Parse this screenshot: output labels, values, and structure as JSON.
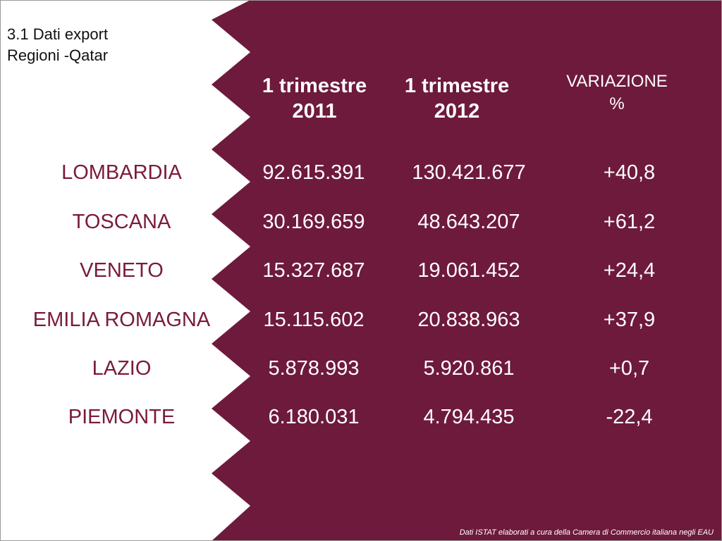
{
  "title": {
    "line1": "3.1 Dati export",
    "line2": "Regioni -Qatar"
  },
  "colors": {
    "maroon": "#6e1a3c",
    "region_text": "#7a1a3e",
    "white": "#ffffff"
  },
  "table": {
    "headers": {
      "col_2011": {
        "line1": "1 trimestre",
        "line2": "2011"
      },
      "col_2012": {
        "line1": "1 trimestre",
        "line2": "2012"
      },
      "col_var": {
        "line1": "VARIAZIONE",
        "line2": "%"
      }
    },
    "rows": [
      {
        "region": "LOMBARDIA",
        "v2011": "92.615.391",
        "v2012": "130.421.677",
        "var": "+40,8"
      },
      {
        "region": "TOSCANA",
        "v2011": "30.169.659",
        "v2012": "48.643.207",
        "var": "+61,2"
      },
      {
        "region": "VENETO",
        "v2011": "15.327.687",
        "v2012": "19.061.452",
        "var": "+24,4"
      },
      {
        "region": "EMILIA ROMAGNA",
        "v2011": "15.115.602",
        "v2012": "20.838.963",
        "var": "+37,9"
      },
      {
        "region": "LAZIO",
        "v2011": "5.878.993",
        "v2012": "5.920.861",
        "var": "+0,7"
      },
      {
        "region": "PIEMONTE",
        "v2011": "6.180.031",
        "v2012": "4.794.435",
        "var": "-22,4"
      }
    ]
  },
  "source_note": "Dati ISTAT elaborati a cura della Camera di Commercio italiana negli EAU"
}
